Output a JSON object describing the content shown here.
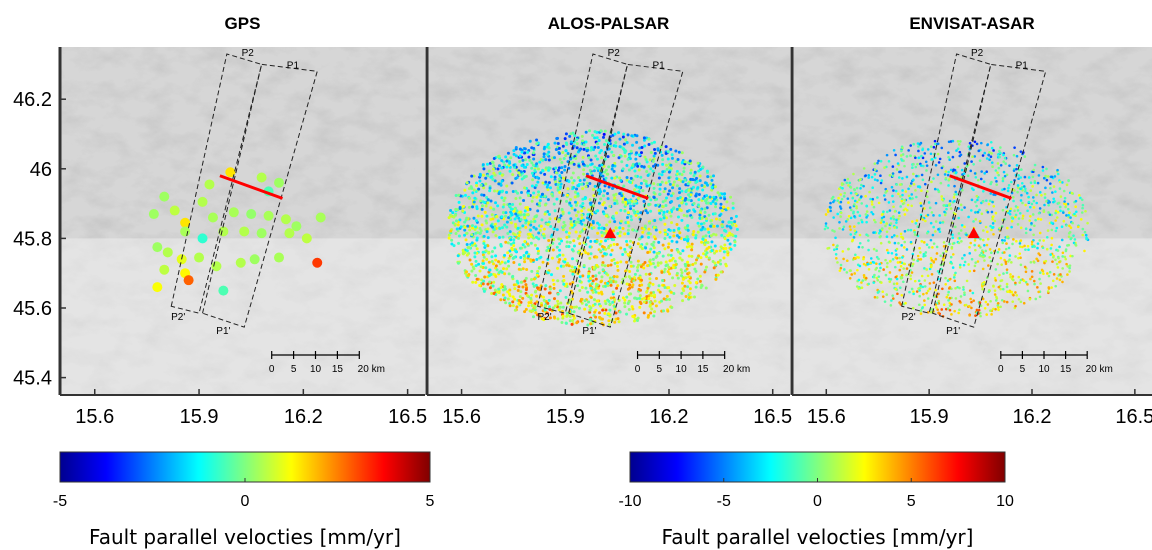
{
  "chart_data": [
    {
      "type": "scatter",
      "title": "GPS",
      "xlim": [
        15.5,
        16.55
      ],
      "ylim": [
        45.35,
        46.35
      ],
      "xticks": [
        "15.6",
        "15.9",
        "16.2",
        "16.5"
      ],
      "yticks": [
        "46.2",
        "46",
        "45.8",
        "45.6",
        "45.4"
      ],
      "profiles": [
        "P2",
        "P1",
        "P2'",
        "P1'"
      ],
      "scalebar": {
        "ticks": [
          "0",
          "5",
          "10",
          "15",
          "20 km"
        ]
      },
      "fault_trace": {
        "x": [
          15.96,
          16.14
        ],
        "y": [
          45.98,
          45.915
        ]
      },
      "colorbar_ref": 0,
      "points": [
        {
          "x": 15.99,
          "y": 45.99,
          "v": 1.5
        },
        {
          "x": 16.08,
          "y": 45.975,
          "v": 0.5
        },
        {
          "x": 16.13,
          "y": 45.96,
          "v": 0.3
        },
        {
          "x": 15.93,
          "y": 45.955,
          "v": 0.5
        },
        {
          "x": 15.8,
          "y": 45.92,
          "v": 0.3
        },
        {
          "x": 15.91,
          "y": 45.905,
          "v": 0.5
        },
        {
          "x": 16.1,
          "y": 45.935,
          "v": -0.5
        },
        {
          "x": 15.77,
          "y": 45.87,
          "v": 0.3
        },
        {
          "x": 15.83,
          "y": 45.88,
          "v": 0.6
        },
        {
          "x": 15.86,
          "y": 45.845,
          "v": 1.5
        },
        {
          "x": 15.94,
          "y": 45.86,
          "v": 0.4
        },
        {
          "x": 16.0,
          "y": 45.875,
          "v": 0.4
        },
        {
          "x": 16.05,
          "y": 45.87,
          "v": 0.2
        },
        {
          "x": 16.1,
          "y": 45.865,
          "v": 0.4
        },
        {
          "x": 16.15,
          "y": 45.855,
          "v": 0.5
        },
        {
          "x": 16.18,
          "y": 45.835,
          "v": 0.3
        },
        {
          "x": 16.25,
          "y": 45.86,
          "v": 0.4
        },
        {
          "x": 15.86,
          "y": 45.82,
          "v": 0.4
        },
        {
          "x": 15.91,
          "y": 45.8,
          "v": -0.8
        },
        {
          "x": 15.97,
          "y": 45.82,
          "v": 0.5
        },
        {
          "x": 16.03,
          "y": 45.82,
          "v": 0.5
        },
        {
          "x": 16.08,
          "y": 45.815,
          "v": 0.3
        },
        {
          "x": 16.16,
          "y": 45.815,
          "v": 0.5
        },
        {
          "x": 16.21,
          "y": 45.8,
          "v": 0.6
        },
        {
          "x": 15.78,
          "y": 45.775,
          "v": 0.3
        },
        {
          "x": 15.81,
          "y": 45.76,
          "v": 0.5
        },
        {
          "x": 15.85,
          "y": 45.74,
          "v": 1.0
        },
        {
          "x": 15.9,
          "y": 45.745,
          "v": 0.5
        },
        {
          "x": 16.02,
          "y": 45.73,
          "v": 0.5
        },
        {
          "x": 16.06,
          "y": 45.74,
          "v": 0.3
        },
        {
          "x": 16.13,
          "y": 45.745,
          "v": 0.4
        },
        {
          "x": 16.24,
          "y": 45.73,
          "v": 3.2
        },
        {
          "x": 15.8,
          "y": 45.71,
          "v": 0.6
        },
        {
          "x": 15.86,
          "y": 45.7,
          "v": 1.3
        },
        {
          "x": 15.95,
          "y": 45.72,
          "v": 0.5
        },
        {
          "x": 15.87,
          "y": 45.68,
          "v": 2.8
        },
        {
          "x": 15.78,
          "y": 45.66,
          "v": 1.2
        },
        {
          "x": 15.97,
          "y": 45.65,
          "v": -0.5
        }
      ]
    },
    {
      "type": "scatter",
      "title": "ALOS-PALSAR",
      "xlim": [
        15.5,
        16.55
      ],
      "ylim": [
        45.35,
        46.35
      ],
      "xticks": [
        "15.6",
        "15.9",
        "16.2",
        "16.5"
      ],
      "yticks": [],
      "profiles": [
        "P2",
        "P1",
        "P2'",
        "P1'"
      ],
      "scalebar": {
        "ticks": [
          "0",
          "5",
          "10",
          "15",
          "20 km"
        ]
      },
      "fault_trace": {
        "x": [
          15.96,
          16.14
        ],
        "y": [
          45.98,
          45.915
        ]
      },
      "reference_point": {
        "x": 16.03,
        "y": 45.815
      },
      "colorbar_ref": 1
    },
    {
      "type": "scatter",
      "title": "ENVISAT-ASAR",
      "xlim": [
        15.5,
        16.55
      ],
      "ylim": [
        45.35,
        46.35
      ],
      "xticks": [
        "15.6",
        "15.9",
        "16.2",
        "16.5"
      ],
      "yticks": [],
      "profiles": [
        "P2",
        "P1",
        "P2'",
        "P1'"
      ],
      "scalebar": {
        "ticks": [
          "0",
          "5",
          "10",
          "15",
          "20 km"
        ]
      },
      "fault_trace": {
        "x": [
          15.96,
          16.14
        ],
        "y": [
          45.98,
          45.915
        ]
      },
      "reference_point": {
        "x": 16.03,
        "y": 45.815
      },
      "colorbar_ref": 1
    }
  ],
  "colorbars": [
    {
      "colormap": "jet",
      "range": [
        -5,
        5
      ],
      "ticks": [
        "-5",
        "0",
        "5"
      ],
      "label": "Fault parallel velocties [mm/yr]"
    },
    {
      "colormap": "jet",
      "range": [
        -10,
        10
      ],
      "ticks": [
        "-10",
        "-5",
        "0",
        "5",
        "10"
      ],
      "label": "Fault parallel velocties [mm/yr]"
    }
  ],
  "colors": {
    "fault_trace": "#ff0000",
    "reference_point": "#ff0000",
    "frame": "#333333"
  }
}
